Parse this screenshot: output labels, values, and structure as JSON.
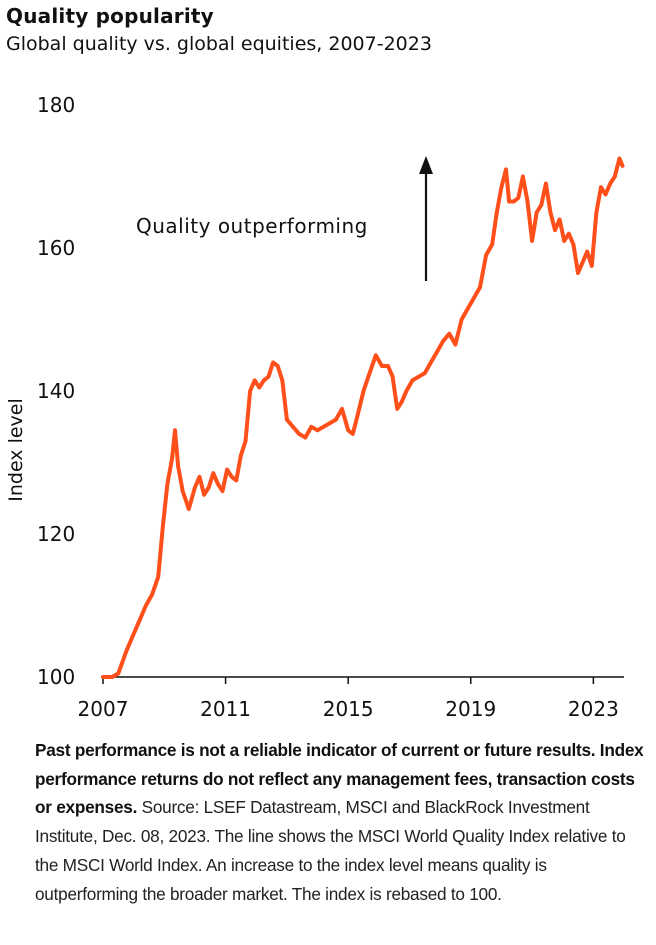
{
  "title": "Quality popularity",
  "subtitle": "Global quality vs. global equities, 2007-2023",
  "footnote": {
    "bold": "Past performance is not a reliable indicator of current or future results. Index performance returns do not reflect any management fees, transaction costs or expenses.",
    "regular": " Source: LSEF Datastream, MSCI and BlackRock Investment Institute, Dec. 08, 2023. The line shows the MSCI World Quality Index relative to the MSCI World Index. An increase to the index level means quality is outperforming the broader market. The index is rebased to 100."
  },
  "chart_data": {
    "type": "line",
    "title": "Quality popularity",
    "subtitle": "Global quality vs. global equities, 2007-2023",
    "ylabel": "Index level",
    "xlabel": "",
    "xlim": [
      2007.0,
      2024.0
    ],
    "ylim": [
      100,
      180
    ],
    "x_ticks": [
      "2007",
      "2011",
      "2015",
      "2019",
      "2023"
    ],
    "y_ticks": [
      "100",
      "120",
      "140",
      "160",
      "180"
    ],
    "grid": false,
    "legend": "none",
    "line_color": "#FF4F1A",
    "annotation": {
      "text": "Quality outperforming",
      "arrow": "up"
    },
    "series": [
      {
        "x": [
          2007.0,
          2007.3,
          2007.5,
          2007.75,
          2008.0,
          2008.2,
          2008.4,
          2008.6,
          2008.8,
          2008.95,
          2009.1,
          2009.25,
          2009.35,
          2009.45,
          2009.6,
          2009.8,
          2010.0,
          2010.15,
          2010.3,
          2010.45,
          2010.6,
          2010.75,
          2010.9,
          2011.05,
          2011.2,
          2011.35,
          2011.5,
          2011.65,
          2011.8,
          2011.95,
          2012.1,
          2012.25,
          2012.4,
          2012.55,
          2012.7,
          2012.85,
          2013.0,
          2013.2,
          2013.4,
          2013.6,
          2013.8,
          2014.0,
          2014.2,
          2014.4,
          2014.6,
          2014.8,
          2015.0,
          2015.15,
          2015.3,
          2015.5,
          2015.7,
          2015.9,
          2016.1,
          2016.3,
          2016.45,
          2016.6,
          2016.75,
          2016.9,
          2017.1,
          2017.3,
          2017.5,
          2017.7,
          2017.9,
          2018.1,
          2018.3,
          2018.5,
          2018.7,
          2018.9,
          2019.1,
          2019.3,
          2019.5,
          2019.7,
          2019.85,
          2020.0,
          2020.15,
          2020.25,
          2020.4,
          2020.55,
          2020.7,
          2020.85,
          2021.0,
          2021.15,
          2021.3,
          2021.45,
          2021.6,
          2021.75,
          2021.9,
          2022.05,
          2022.2,
          2022.35,
          2022.5,
          2022.65,
          2022.8,
          2022.95,
          2023.1,
          2023.25,
          2023.4,
          2023.55,
          2023.7,
          2023.85,
          2023.95
        ],
        "y": [
          100.0,
          100.0,
          100.5,
          103.5,
          106.0,
          108.0,
          110.0,
          111.5,
          114.0,
          121.0,
          127.0,
          130.5,
          134.5,
          129.5,
          126.0,
          123.5,
          126.5,
          128.0,
          125.5,
          126.5,
          128.5,
          127.0,
          126.0,
          129.0,
          128.0,
          127.5,
          131.0,
          133.0,
          140.0,
          141.5,
          140.5,
          141.5,
          142.0,
          144.0,
          143.5,
          141.5,
          136.0,
          135.0,
          134.0,
          133.5,
          135.0,
          134.5,
          135.0,
          135.5,
          136.0,
          137.5,
          134.5,
          134.0,
          136.5,
          140.0,
          142.5,
          145.0,
          143.5,
          143.5,
          142.0,
          137.5,
          138.5,
          140.0,
          141.5,
          142.0,
          142.5,
          144.0,
          145.5,
          147.0,
          148.0,
          146.5,
          150.0,
          151.5,
          153.0,
          154.5,
          159.0,
          160.5,
          165.0,
          168.5,
          171.0,
          166.5,
          166.5,
          167.0,
          170.0,
          166.5,
          161.0,
          165.0,
          166.0,
          169.0,
          165.0,
          162.5,
          164.0,
          161.0,
          162.0,
          160.5,
          156.5,
          158.0,
          159.5,
          157.5,
          165.0,
          168.5,
          167.5,
          169.0,
          170.0,
          172.5,
          171.5
        ]
      }
    ]
  }
}
